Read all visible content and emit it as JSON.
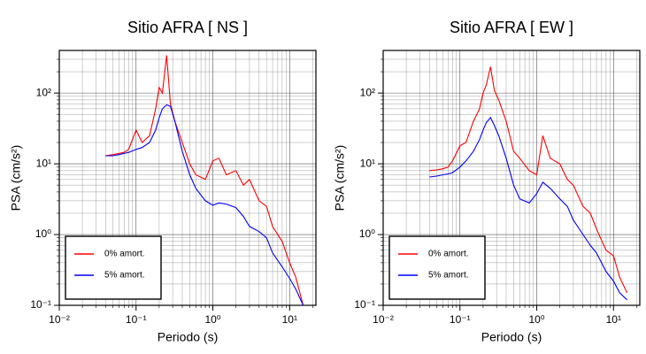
{
  "chart_data": [
    {
      "type": "line",
      "title": "Sitio AFRA [ NS ]",
      "xlabel": "Periodo (s)",
      "ylabel": "PSA (cm/s²)",
      "log": true,
      "grid": true,
      "legend": "lower left",
      "x": [
        0.04,
        0.05,
        0.06,
        0.07,
        0.08,
        0.1,
        0.12,
        0.15,
        0.18,
        0.2,
        0.22,
        0.25,
        0.28,
        0.32,
        0.4,
        0.5,
        0.6,
        0.8,
        1,
        1.2,
        1.5,
        2,
        2.5,
        3,
        4,
        5,
        6,
        8,
        10,
        12,
        15
      ],
      "series": [
        {
          "name": "0% amort.",
          "color": "#ff0000",
          "values": [
            13,
            13.5,
            14,
            14.5,
            16,
            30,
            20,
            25,
            60,
            120,
            100,
            340,
            70,
            40,
            20,
            10,
            7,
            6,
            11,
            12,
            7,
            8,
            5,
            6,
            3,
            2.5,
            1.3,
            0.8,
            0.4,
            0.25,
            0.1
          ]
        },
        {
          "name": "5% amort.",
          "color": "#0000ff",
          "values": [
            13,
            13,
            13.5,
            14,
            14.5,
            16,
            17,
            20,
            30,
            45,
            60,
            68,
            65,
            40,
            15,
            7,
            4.5,
            3,
            2.6,
            2.8,
            2.7,
            2.4,
            1.8,
            1.3,
            1.1,
            0.9,
            0.55,
            0.35,
            0.24,
            0.17,
            0.1
          ]
        }
      ],
      "xlim": [
        0.01,
        22
      ],
      "ylim": [
        0.1,
        400
      ],
      "xticks": [
        {
          "value": 0.01,
          "label": "10⁻²"
        },
        {
          "value": 0.1,
          "label": "10⁻¹"
        },
        {
          "value": 1,
          "label": "10⁰"
        },
        {
          "value": 10,
          "label": "10¹"
        }
      ],
      "yticks": [
        {
          "value": 0.1,
          "label": "10⁻¹"
        },
        {
          "value": 1,
          "label": "10⁰"
        },
        {
          "value": 10,
          "label": "10¹"
        },
        {
          "value": 100,
          "label": "10²"
        }
      ]
    },
    {
      "type": "line",
      "title": "Sitio AFRA [ EW ]",
      "xlabel": "Periodo (s)",
      "ylabel": "PSA (cm/s²)",
      "log": true,
      "grid": true,
      "legend": "lower left",
      "x": [
        0.04,
        0.05,
        0.06,
        0.07,
        0.08,
        0.1,
        0.12,
        0.15,
        0.18,
        0.2,
        0.22,
        0.25,
        0.28,
        0.32,
        0.4,
        0.5,
        0.6,
        0.8,
        1,
        1.2,
        1.5,
        2,
        2.5,
        3,
        4,
        5,
        6,
        8,
        10,
        12,
        15
      ],
      "series": [
        {
          "name": "0% amort.",
          "color": "#ff0000",
          "values": [
            8,
            8.2,
            8.5,
            9,
            11,
            18,
            20,
            40,
            60,
            100,
            130,
            235,
            110,
            80,
            40,
            15,
            12,
            8,
            7,
            25,
            12,
            10,
            6,
            5,
            2.5,
            2,
            1.2,
            0.6,
            0.5,
            0.25,
            0.15
          ]
        },
        {
          "name": "5% amort.",
          "color": "#0000ff",
          "values": [
            6.5,
            6.7,
            7,
            7.2,
            7.5,
            9,
            11,
            15,
            22,
            30,
            38,
            45,
            35,
            25,
            12,
            5,
            3.2,
            2.8,
            3.8,
            5.5,
            4.5,
            3.2,
            2.5,
            1.6,
            1,
            0.7,
            0.55,
            0.3,
            0.22,
            0.15,
            0.12
          ]
        }
      ],
      "xlim": [
        0.01,
        22
      ],
      "ylim": [
        0.1,
        400
      ],
      "xticks": [
        {
          "value": 0.01,
          "label": "10⁻²"
        },
        {
          "value": 0.1,
          "label": "10⁻¹"
        },
        {
          "value": 1,
          "label": "10⁰"
        },
        {
          "value": 10,
          "label": "10¹"
        }
      ],
      "yticks": [
        {
          "value": 0.1,
          "label": "10⁻¹"
        },
        {
          "value": 1,
          "label": "10⁰"
        },
        {
          "value": 10,
          "label": "10¹"
        },
        {
          "value": 100,
          "label": "10²"
        }
      ]
    }
  ]
}
